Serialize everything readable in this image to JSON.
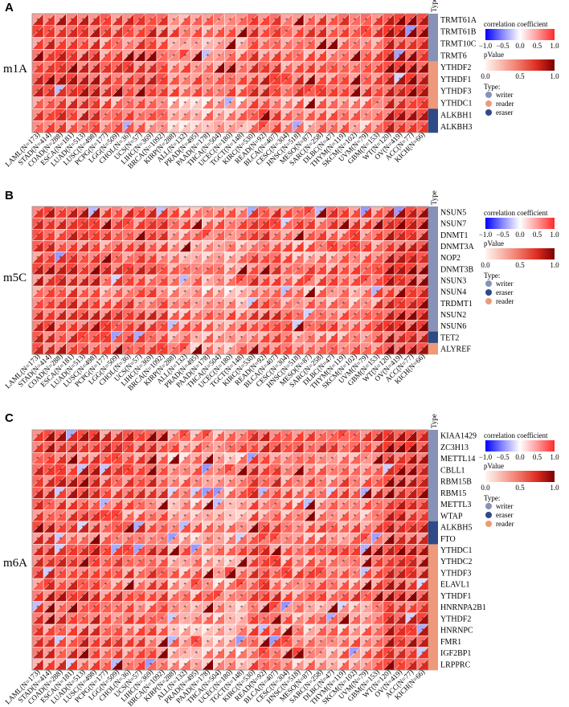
{
  "figure": {
    "cancers": [
      "LAML(N=173)",
      "STAD(N=414)",
      "COAD(N=288)",
      "ESCA(N=181)",
      "LUAD(N=513)",
      "LUSC(N=498)",
      "PCPG(N=177)",
      "LGG(N=509)",
      "CHOL(N=36)",
      "UCS(N=57)",
      "LIHC(N=369)",
      "BRCA(N=1092)",
      "KIRP(N=288)",
      "ALL(N=132)",
      "PRAD(N=495)",
      "PAAD(N=178)",
      "THCA(N=504)",
      "UCEC(N=180)",
      "TGCT(N=148)",
      "KIRC(N=530)",
      "READ(N=92)",
      "BLCA(N=407)",
      "CESC(N=304)",
      "HNSC(N=518)",
      "MESO(N=87)",
      "SARC(N=258)",
      "DLBC(N=47)",
      "THYM(N=119)",
      "SKCM(N=102)",
      "UVM(N=79)",
      "GBM(N=153)",
      "WT(N=120)",
      "OV(N=419)",
      "ACC(N=77)",
      "KICH(N=66)"
    ],
    "type_header": "Type",
    "legend": {
      "corr_title": "correlation coefficient",
      "corr_ticks": [
        "−1.0",
        "−0.5",
        "0.0",
        "0.5",
        "1.0"
      ],
      "pval_title": "pValue",
      "pval_ticks": [
        "0.0",
        "0.5",
        "1.0"
      ],
      "type_title": "Type:"
    },
    "type_colors": {
      "writer": "#8892b8",
      "reader": "#ee9a7a",
      "eraser": "#2e4b86"
    }
  },
  "panels": [
    {
      "letter": "A",
      "title": "m1A",
      "genes": [
        "TRMT61A",
        "TRMT61B",
        "TRMT10C",
        "TRMT6",
        "YTHDF2",
        "YTHDF1",
        "YTHDF3",
        "YTHDC1",
        "ALKBH1",
        "ALKBH3"
      ],
      "types": [
        "writer",
        "writer",
        "writer",
        "writer",
        "reader",
        "reader",
        "reader",
        "reader",
        "eraser",
        "eraser"
      ],
      "legend_types": [
        "writer",
        "reader",
        "eraser"
      ]
    },
    {
      "letter": "B",
      "title": "m5C",
      "genes": [
        "NSUN5",
        "NSUN7",
        "DNMT1",
        "DNMT3A",
        "NOP2",
        "DNMT3B",
        "NSUN3",
        "NSUN4",
        "TRDMT1",
        "NSUN2",
        "NSUN6",
        "TET2",
        "ALYREF"
      ],
      "types": [
        "writer",
        "writer",
        "writer",
        "writer",
        "writer",
        "writer",
        "writer",
        "writer",
        "writer",
        "writer",
        "writer",
        "eraser",
        "reader"
      ],
      "legend_types": [
        "writer",
        "eraser",
        "reader"
      ]
    },
    {
      "letter": "C",
      "title": "m6A",
      "genes": [
        "KIAA1429",
        "ZC3H13",
        "METTL14",
        "CBLL1",
        "RBM15B",
        "RBM15",
        "METTL3",
        "WTAP",
        "ALKBH5",
        "FTO",
        "YTHDC1",
        "YTHDC2",
        "YTHDF3",
        "ELAVL1",
        "YTHDF1",
        "HNRNPA2B1",
        "YTHDF2",
        "HNRNPC",
        "FMR1",
        "IGF2BP1",
        "LRPPRC"
      ],
      "types": [
        "writer",
        "writer",
        "writer",
        "writer",
        "writer",
        "writer",
        "writer",
        "writer",
        "eraser",
        "eraser",
        "reader",
        "reader",
        "reader",
        "reader",
        "reader",
        "reader",
        "reader",
        "reader",
        "reader",
        "reader",
        "reader"
      ],
      "legend_types": [
        "writer",
        "eraser",
        "reader"
      ]
    }
  ],
  "chart_data": [
    {
      "type": "heatmap",
      "title": "m1A",
      "x": "cancers",
      "y": [
        "TRMT61A",
        "TRMT61B",
        "TRMT10C",
        "TRMT6",
        "YTHDF2",
        "YTHDF1",
        "YTHDF3",
        "YTHDC1",
        "ALKBH1",
        "ALKBH3"
      ],
      "color_scale": [
        -1,
        1
      ],
      "pvalue_scale": [
        0,
        1
      ],
      "note_cells": "upper-left triangle = correlation coefficient, lower-right triangle = pValue, * = significant"
    },
    {
      "type": "heatmap",
      "title": "m5C",
      "x": "cancers",
      "y": [
        "NSUN5",
        "NSUN7",
        "DNMT1",
        "DNMT3A",
        "NOP2",
        "DNMT3B",
        "NSUN3",
        "NSUN4",
        "TRDMT1",
        "NSUN2",
        "NSUN6",
        "TET2",
        "ALYREF"
      ],
      "color_scale": [
        -1,
        1
      ],
      "pvalue_scale": [
        0,
        1
      ]
    },
    {
      "type": "heatmap",
      "title": "m6A",
      "x": "cancers",
      "y": [
        "KIAA1429",
        "ZC3H13",
        "METTL14",
        "CBLL1",
        "RBM15B",
        "RBM15",
        "METTL3",
        "WTAP",
        "ALKBH5",
        "FTO",
        "YTHDC1",
        "YTHDC2",
        "YTHDF3",
        "ELAVL1",
        "YTHDF1",
        "HNRNPA2B1",
        "YTHDF2",
        "HNRNPC",
        "FMR1",
        "IGF2BP1",
        "LRPPRC"
      ],
      "color_scale": [
        -1,
        1
      ],
      "pvalue_scale": [
        0,
        1
      ]
    }
  ]
}
